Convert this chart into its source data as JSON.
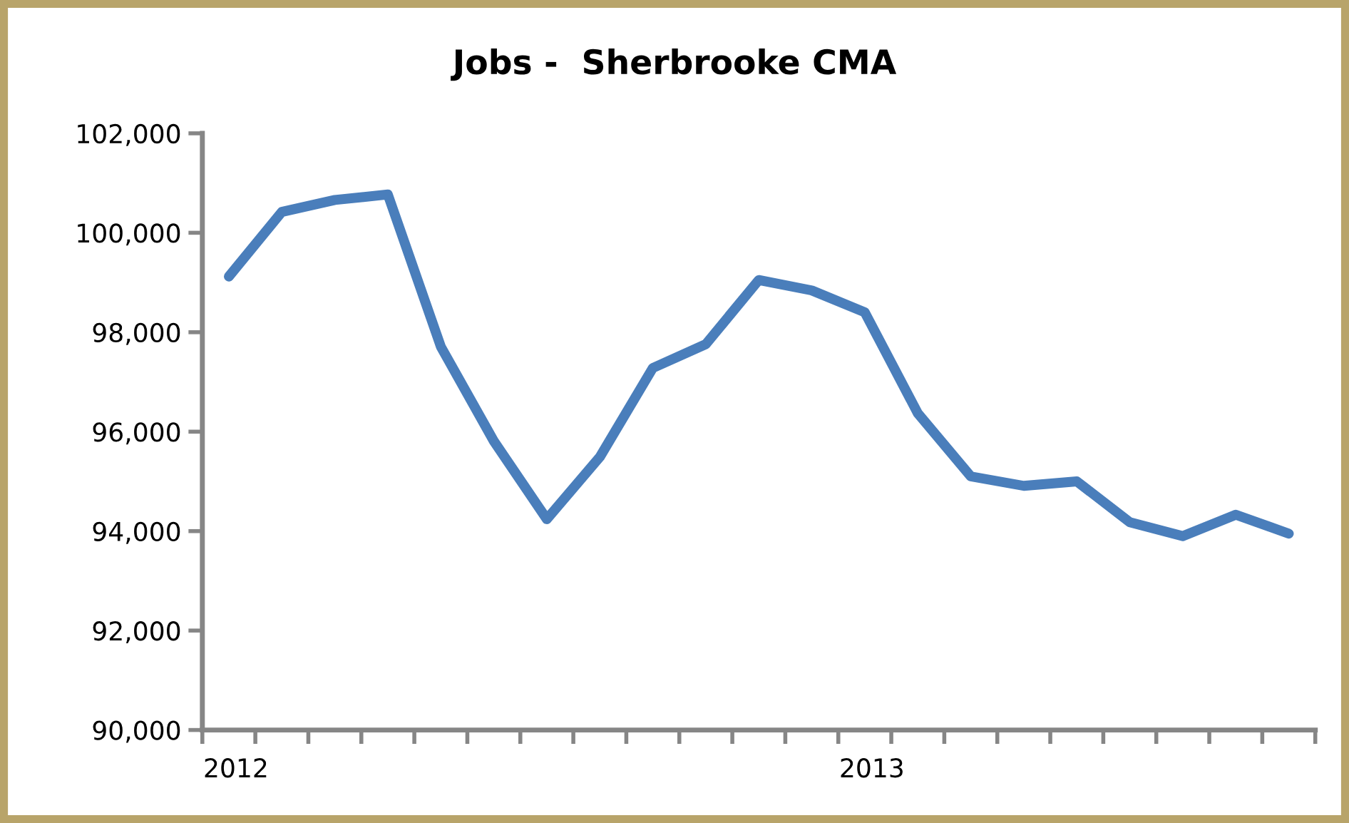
{
  "chart_data": {
    "type": "line",
    "title": "Jobs -  Sherbrooke CMA",
    "categories": [
      "2012",
      null,
      null,
      null,
      null,
      null,
      null,
      null,
      null,
      null,
      null,
      null,
      "2013",
      null,
      null,
      null,
      null,
      null,
      null,
      null,
      null
    ],
    "series": [
      {
        "color": "#4a7ebb",
        "values": [
          99120,
          100420,
          100660,
          100770,
          97710,
          95810,
          94240,
          95490,
          97280,
          97760,
          99050,
          98840,
          98400,
          96370,
          95100,
          94910,
          95000,
          94180,
          93900,
          94330,
          93950
        ]
      }
    ],
    "ylim": [
      90000,
      102000
    ],
    "yticks": [
      {
        "value": 90000,
        "label": "90,000"
      },
      {
        "value": 92000,
        "label": "92,000"
      },
      {
        "value": 94000,
        "label": "94,000"
      },
      {
        "value": 96000,
        "label": "96,000"
      },
      {
        "value": 98000,
        "label": "98,000"
      },
      {
        "value": 100000,
        "label": "100,000"
      },
      {
        "value": 102000,
        "label": "102,000"
      }
    ],
    "grid": false,
    "marker": "none",
    "line_style": "solid"
  }
}
